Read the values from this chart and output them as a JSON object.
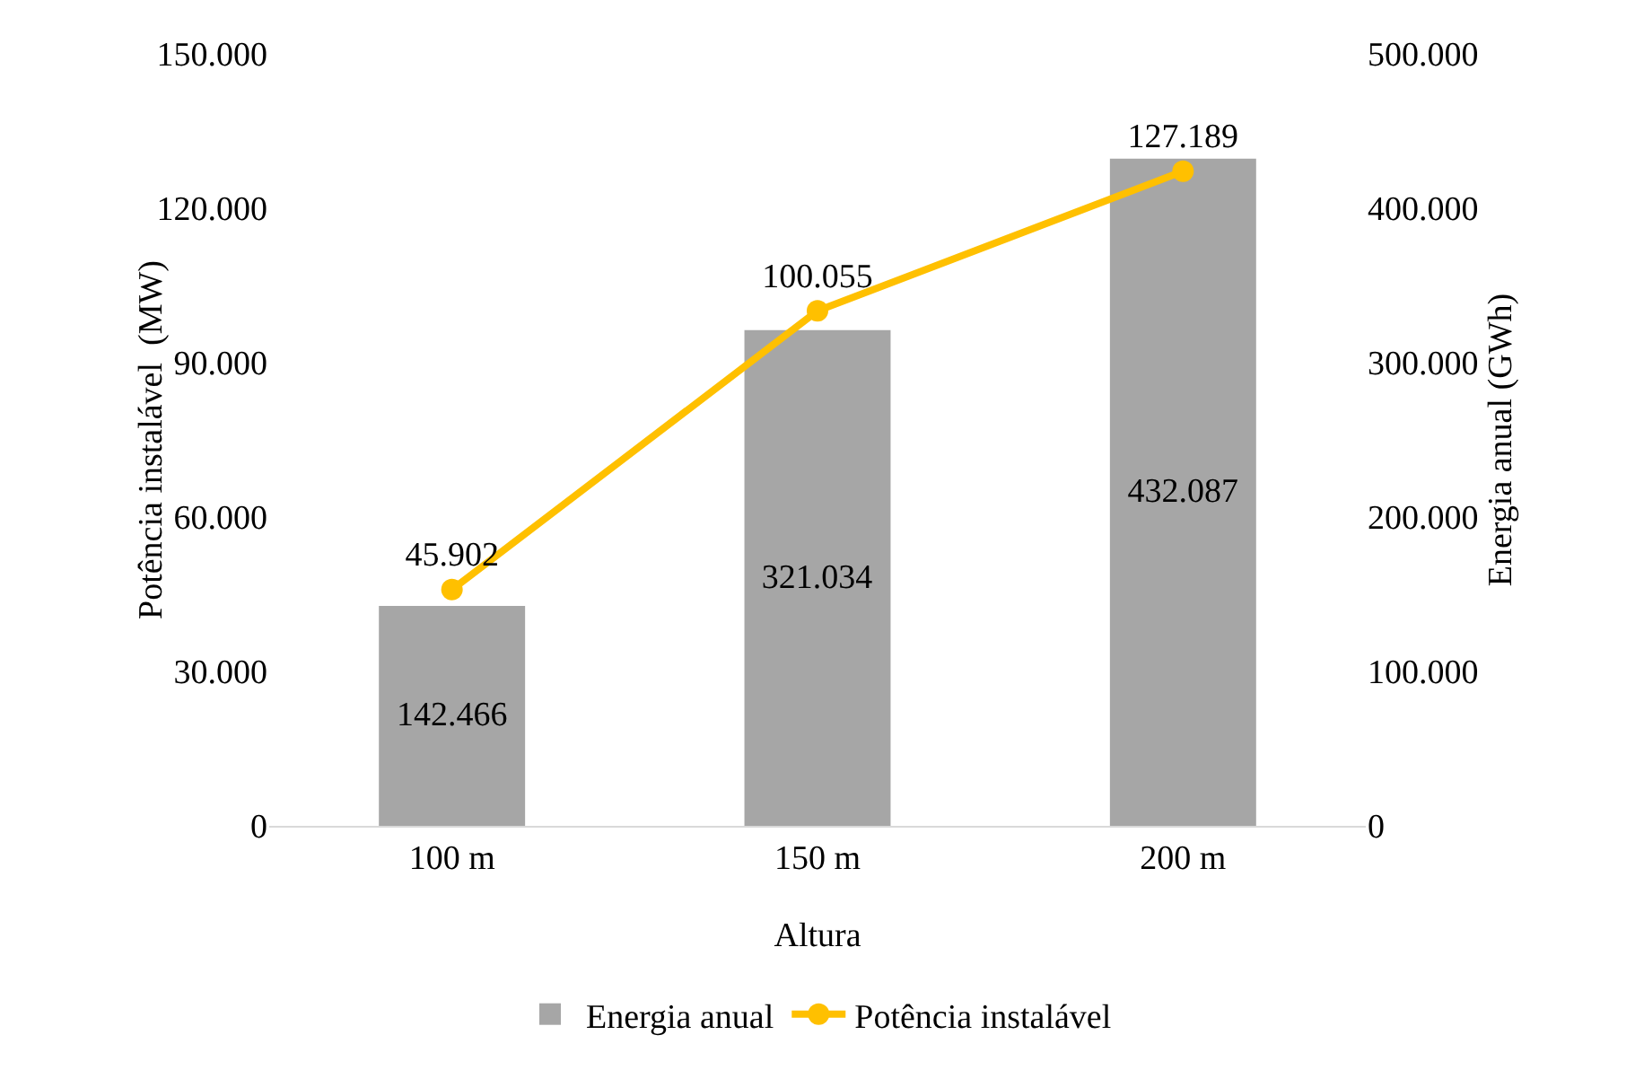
{
  "chart_data": {
    "type": "bar",
    "xlabel": "Altura",
    "ylabel": "Potência instalável  (MW)",
    "y2label": "Energia anual (GWh)",
    "categories": [
      "100 m",
      "150 m",
      "200 m"
    ],
    "series": [
      {
        "name": "Energia anual",
        "axis": "y2",
        "color": "#a6a6a6",
        "values": [
          142466,
          321034,
          432087
        ],
        "value_labels": [
          "142.466",
          "321.034",
          "432.087"
        ]
      },
      {
        "name": "Potência instalável",
        "type": "line",
        "axis": "y",
        "color": "#ffc000",
        "marker": "circle",
        "values": [
          45902,
          100055,
          127189
        ],
        "value_labels": [
          "45.902",
          "100.055",
          "127.189"
        ]
      }
    ],
    "ylim": [
      0,
      150000
    ],
    "yticks": [
      0,
      {
        "value": 30000,
        "label": "30.000"
      },
      {
        "value": 60000,
        "label": "60.000"
      },
      {
        "value": 90000,
        "label": "90.000"
      },
      {
        "value": 120000,
        "label": "120.000"
      },
      {
        "value": 150000,
        "label": "150.000"
      }
    ],
    "y2lim": [
      0,
      500000
    ],
    "y2ticks": [
      0,
      {
        "value": 100000,
        "label": "100.000"
      },
      {
        "value": 200000,
        "label": "200.000"
      },
      {
        "value": 300000,
        "label": "300.000"
      },
      {
        "value": 400000,
        "label": "400.000"
      },
      {
        "value": 500000,
        "label": "500.000"
      }
    ],
    "grid": false,
    "legend": "bottom"
  }
}
